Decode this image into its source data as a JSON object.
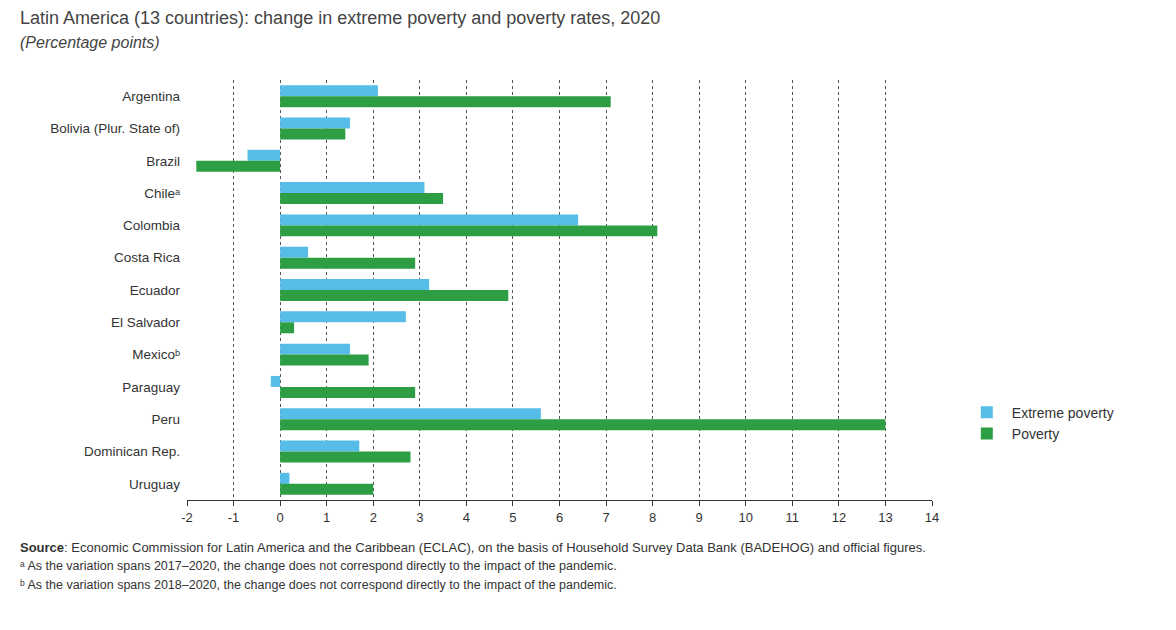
{
  "chart_data": {
    "type": "bar",
    "orientation": "horizontal",
    "title": "Latin America (13 countries): change in extreme poverty and poverty rates, 2020",
    "subtitle": "(Percentage points)",
    "categories": [
      "Argentina",
      "Bolivia (Plur. State of)",
      "Brazil",
      "Chileᵃ",
      "Colombia",
      "Costa Rica",
      "Ecuador",
      "El Salvador",
      "Mexicoᵇ",
      "Paraguay",
      "Peru",
      "Dominican Rep.",
      "Uruguay"
    ],
    "series": [
      {
        "name": "Extreme poverty",
        "color": "#56bde8",
        "values": [
          2.1,
          1.5,
          -0.7,
          3.1,
          6.4,
          0.6,
          3.2,
          2.7,
          1.5,
          -0.2,
          5.6,
          1.7,
          0.2
        ]
      },
      {
        "name": "Poverty",
        "color": "#2e9e44",
        "values": [
          7.1,
          1.4,
          -1.8,
          3.5,
          8.1,
          2.9,
          4.9,
          0.3,
          1.9,
          2.9,
          13.0,
          2.8,
          2.0
        ]
      }
    ],
    "xlim": [
      -2,
      14
    ],
    "xticks": [
      -2,
      -1,
      0,
      1,
      2,
      3,
      4,
      5,
      6,
      7,
      8,
      9,
      10,
      11,
      12,
      13,
      14
    ],
    "grid": true,
    "legend": "lower right",
    "annotations": [
      "Source: Economic Commission for Latin America and the Caribbean (ECLAC), on the basis of Household Survey Data Bank (BADEHOG) and official figures.",
      "ᵃ As the variation spans 2017–2020, the change does not correspond directly to the impact of the pandemic.",
      "ᵇ As the variation spans 2018–2020, the change does not correspond directly to the impact of the pandemic."
    ]
  }
}
